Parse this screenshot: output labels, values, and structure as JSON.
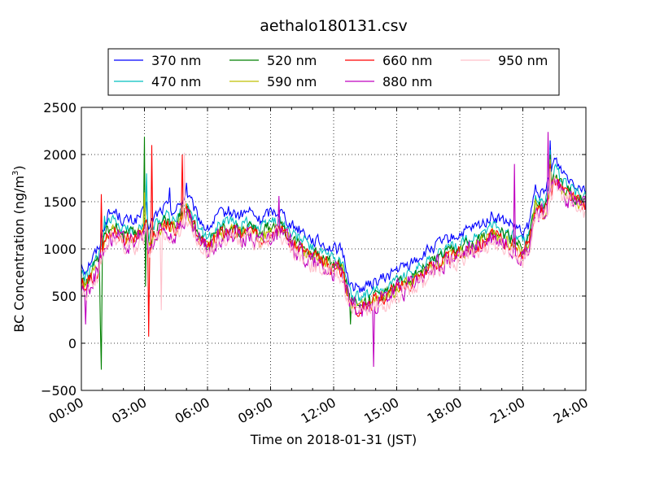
{
  "chart_data": {
    "type": "line",
    "title": "aethalo180131.csv",
    "xlabel": "Time on 2018-01-31 (JST)",
    "ylabel_main": "BC Concentration (ng/m",
    "ylabel_sup": "3",
    "ylabel_close": ")",
    "x_unit": "hours",
    "xlim": [
      0,
      24
    ],
    "ylim": [
      -500,
      2500
    ],
    "x_ticks": [
      0,
      3,
      6,
      9,
      12,
      15,
      18,
      21,
      24
    ],
    "x_tick_labels": [
      "00:00",
      "03:00",
      "06:00",
      "09:00",
      "12:00",
      "15:00",
      "18:00",
      "21:00",
      "24:00"
    ],
    "y_ticks": [
      -500,
      0,
      500,
      1000,
      1500,
      2000,
      2500
    ],
    "y_tick_labels": [
      "−500",
      "0",
      "500",
      "1000",
      "1500",
      "2000",
      "2500"
    ],
    "grid": true,
    "legend_position": "top, above plot",
    "base_profile": {
      "x": [
        0,
        0.2,
        0.5,
        0.8,
        1.2,
        1.6,
        2.0,
        2.5,
        3.0,
        3.1,
        3.2,
        3.5,
        4.0,
        4.5,
        5.0,
        5.5,
        6.0,
        6.5,
        7.0,
        7.5,
        8.0,
        8.5,
        9.0,
        9.5,
        10.0,
        10.5,
        11.0,
        11.5,
        12.0,
        12.4,
        12.8,
        13.2,
        13.6,
        14.0,
        14.5,
        15.0,
        15.5,
        16.0,
        16.5,
        17.0,
        17.5,
        18.0,
        18.5,
        19.0,
        19.5,
        20.0,
        20.5,
        21.0,
        21.3,
        21.6,
        22.0,
        22.5,
        23.0,
        23.5,
        24.0
      ],
      "y": [
        650,
        580,
        700,
        800,
        1150,
        1200,
        1100,
        1100,
        1180,
        1250,
        1000,
        1150,
        1250,
        1200,
        1400,
        1150,
        1000,
        1150,
        1200,
        1150,
        1200,
        1100,
        1200,
        1200,
        1050,
        1000,
        900,
        850,
        800,
        780,
        420,
        380,
        400,
        450,
        500,
        580,
        620,
        700,
        780,
        850,
        900,
        950,
        1000,
        1050,
        1150,
        1100,
        1050,
        950,
        1050,
        1450,
        1350,
        1750,
        1600,
        1500,
        1450
      ]
    },
    "series": [
      {
        "name": "370 nm",
        "color": "#0000ff",
        "offset": 200,
        "noise": 90,
        "spikes": [
          [
            1.2,
            1250
          ],
          [
            3.1,
            1500
          ],
          [
            4.2,
            1650
          ],
          [
            5.0,
            1700
          ],
          [
            22.3,
            2150
          ]
        ]
      },
      {
        "name": "470 nm",
        "color": "#00bfbf",
        "offset": 100,
        "noise": 90,
        "spikes": [
          [
            1.1,
            1350
          ],
          [
            3.1,
            1800
          ],
          [
            22.3,
            2050
          ]
        ]
      },
      {
        "name": "520 nm",
        "color": "#008000",
        "offset": 50,
        "noise": 100,
        "spikes": [
          [
            0.9,
            200
          ],
          [
            0.95,
            -280
          ],
          [
            3.0,
            2190
          ],
          [
            3.05,
            600
          ],
          [
            12.8,
            200
          ],
          [
            22.3,
            2000
          ]
        ]
      },
      {
        "name": "590 nm",
        "color": "#bfbf00",
        "offset": 0,
        "noise": 100,
        "spikes": [
          [
            3.0,
            1600
          ],
          [
            22.3,
            1950
          ]
        ]
      },
      {
        "name": "660 nm",
        "color": "#ff0000",
        "offset": 0,
        "noise": 110,
        "spikes": [
          [
            0.95,
            1580
          ],
          [
            3.2,
            70
          ],
          [
            3.35,
            2100
          ],
          [
            4.8,
            2000
          ],
          [
            22.3,
            1900
          ]
        ]
      },
      {
        "name": "880 nm",
        "color": "#bf00bf",
        "offset": -30,
        "noise": 160,
        "spikes": [
          [
            0.2,
            200
          ],
          [
            13.9,
            -250
          ],
          [
            9.4,
            1560
          ],
          [
            20.6,
            1900
          ],
          [
            22.2,
            2240
          ]
        ]
      },
      {
        "name": "950 nm",
        "color": "#ffc0cb",
        "offset": -70,
        "noise": 130,
        "spikes": [
          [
            3.8,
            350
          ],
          [
            4.9,
            2020
          ],
          [
            22.3,
            1850
          ]
        ]
      }
    ]
  }
}
